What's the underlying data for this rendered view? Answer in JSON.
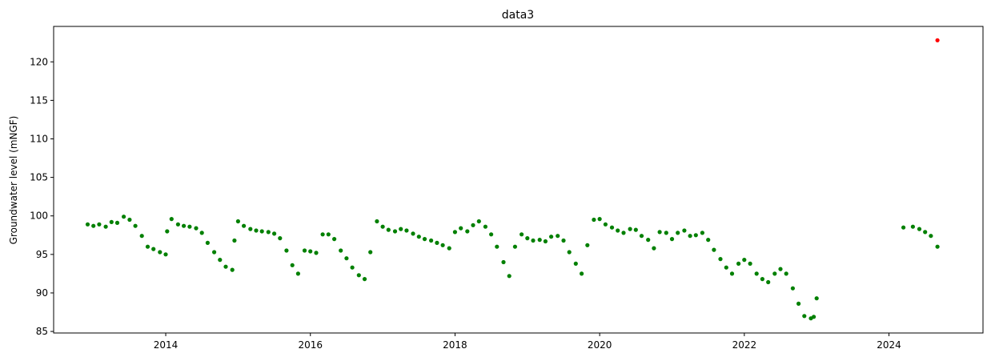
{
  "chart_data": {
    "type": "scatter",
    "title": "data3",
    "xlabel": "",
    "ylabel": "Groundwater level (mNGF)",
    "xlim": [
      2012.45,
      2025.3
    ],
    "ylim": [
      84.8,
      124.6
    ],
    "x_ticks": [
      2014,
      2016,
      2018,
      2020,
      2022,
      2024
    ],
    "x_tick_labels": [
      "2014",
      "2016",
      "2018",
      "2020",
      "2022",
      "2024"
    ],
    "y_ticks": [
      85,
      90,
      95,
      100,
      105,
      110,
      115,
      120
    ],
    "y_tick_labels": [
      "85",
      "90",
      "95",
      "100",
      "105",
      "110",
      "115",
      "120"
    ],
    "grid": false,
    "legend": "none",
    "series": [
      {
        "color": "#008000",
        "points": [
          [
            2012.92,
            98.9
          ],
          [
            2013.0,
            98.7
          ],
          [
            2013.08,
            98.9
          ],
          [
            2013.17,
            98.6
          ],
          [
            2013.25,
            99.2
          ],
          [
            2013.33,
            99.1
          ],
          [
            2013.42,
            99.9
          ],
          [
            2013.5,
            99.5
          ],
          [
            2013.58,
            98.7
          ],
          [
            2013.67,
            97.4
          ],
          [
            2013.75,
            96.0
          ],
          [
            2013.83,
            95.7
          ],
          [
            2013.92,
            95.3
          ],
          [
            2014.0,
            95.0
          ],
          [
            2014.02,
            98.0
          ],
          [
            2014.08,
            99.6
          ],
          [
            2014.17,
            98.9
          ],
          [
            2014.25,
            98.7
          ],
          [
            2014.33,
            98.6
          ],
          [
            2014.42,
            98.4
          ],
          [
            2014.5,
            97.8
          ],
          [
            2014.58,
            96.5
          ],
          [
            2014.67,
            95.3
          ],
          [
            2014.75,
            94.3
          ],
          [
            2014.83,
            93.4
          ],
          [
            2014.92,
            93.0
          ],
          [
            2014.95,
            96.8
          ],
          [
            2015.0,
            99.3
          ],
          [
            2015.08,
            98.7
          ],
          [
            2015.17,
            98.3
          ],
          [
            2015.25,
            98.1
          ],
          [
            2015.33,
            98.0
          ],
          [
            2015.42,
            97.9
          ],
          [
            2015.5,
            97.7
          ],
          [
            2015.58,
            97.1
          ],
          [
            2015.67,
            95.5
          ],
          [
            2015.75,
            93.6
          ],
          [
            2015.83,
            92.5
          ],
          [
            2015.92,
            95.5
          ],
          [
            2016.0,
            95.4
          ],
          [
            2016.08,
            95.2
          ],
          [
            2016.17,
            97.6
          ],
          [
            2016.25,
            97.6
          ],
          [
            2016.33,
            97.0
          ],
          [
            2016.42,
            95.5
          ],
          [
            2016.5,
            94.5
          ],
          [
            2016.58,
            93.3
          ],
          [
            2016.67,
            92.3
          ],
          [
            2016.75,
            91.8
          ],
          [
            2016.83,
            95.3
          ],
          [
            2016.92,
            99.3
          ],
          [
            2017.0,
            98.6
          ],
          [
            2017.08,
            98.2
          ],
          [
            2017.17,
            98.0
          ],
          [
            2017.25,
            98.3
          ],
          [
            2017.33,
            98.1
          ],
          [
            2017.42,
            97.7
          ],
          [
            2017.5,
            97.3
          ],
          [
            2017.58,
            97.0
          ],
          [
            2017.67,
            96.8
          ],
          [
            2017.75,
            96.5
          ],
          [
            2017.83,
            96.2
          ],
          [
            2017.92,
            95.8
          ],
          [
            2018.0,
            97.9
          ],
          [
            2018.08,
            98.4
          ],
          [
            2018.17,
            98.0
          ],
          [
            2018.25,
            98.8
          ],
          [
            2018.33,
            99.3
          ],
          [
            2018.42,
            98.6
          ],
          [
            2018.5,
            97.6
          ],
          [
            2018.58,
            96.0
          ],
          [
            2018.67,
            94.0
          ],
          [
            2018.75,
            92.2
          ],
          [
            2018.83,
            96.0
          ],
          [
            2018.92,
            97.6
          ],
          [
            2019.0,
            97.1
          ],
          [
            2019.08,
            96.8
          ],
          [
            2019.17,
            96.9
          ],
          [
            2019.25,
            96.7
          ],
          [
            2019.33,
            97.3
          ],
          [
            2019.42,
            97.4
          ],
          [
            2019.5,
            96.8
          ],
          [
            2019.58,
            95.3
          ],
          [
            2019.67,
            93.8
          ],
          [
            2019.75,
            92.5
          ],
          [
            2019.83,
            96.2
          ],
          [
            2019.92,
            99.5
          ],
          [
            2020.0,
            99.6
          ],
          [
            2020.08,
            98.9
          ],
          [
            2020.17,
            98.5
          ],
          [
            2020.25,
            98.1
          ],
          [
            2020.33,
            97.8
          ],
          [
            2020.42,
            98.3
          ],
          [
            2020.5,
            98.2
          ],
          [
            2020.58,
            97.4
          ],
          [
            2020.67,
            96.9
          ],
          [
            2020.75,
            95.8
          ],
          [
            2020.83,
            97.9
          ],
          [
            2020.92,
            97.8
          ],
          [
            2021.0,
            97.0
          ],
          [
            2021.08,
            97.8
          ],
          [
            2021.17,
            98.1
          ],
          [
            2021.25,
            97.4
          ],
          [
            2021.33,
            97.5
          ],
          [
            2021.42,
            97.8
          ],
          [
            2021.5,
            96.9
          ],
          [
            2021.58,
            95.6
          ],
          [
            2021.67,
            94.4
          ],
          [
            2021.75,
            93.3
          ],
          [
            2021.83,
            92.5
          ],
          [
            2021.92,
            93.8
          ],
          [
            2022.0,
            94.3
          ],
          [
            2022.08,
            93.8
          ],
          [
            2022.17,
            92.5
          ],
          [
            2022.25,
            91.8
          ],
          [
            2022.33,
            91.4
          ],
          [
            2022.42,
            92.5
          ],
          [
            2022.5,
            93.1
          ],
          [
            2022.58,
            92.5
          ],
          [
            2022.67,
            90.6
          ],
          [
            2022.75,
            88.6
          ],
          [
            2022.83,
            87.0
          ],
          [
            2022.92,
            86.7
          ],
          [
            2022.96,
            86.9
          ],
          [
            2023.0,
            89.3
          ],
          [
            2024.2,
            98.5
          ],
          [
            2024.33,
            98.6
          ],
          [
            2024.42,
            98.3
          ],
          [
            2024.5,
            97.9
          ],
          [
            2024.58,
            97.4
          ],
          [
            2024.67,
            96.0
          ]
        ]
      },
      {
        "color": "#ff0000",
        "points": [
          [
            2024.67,
            122.8
          ]
        ]
      }
    ]
  }
}
